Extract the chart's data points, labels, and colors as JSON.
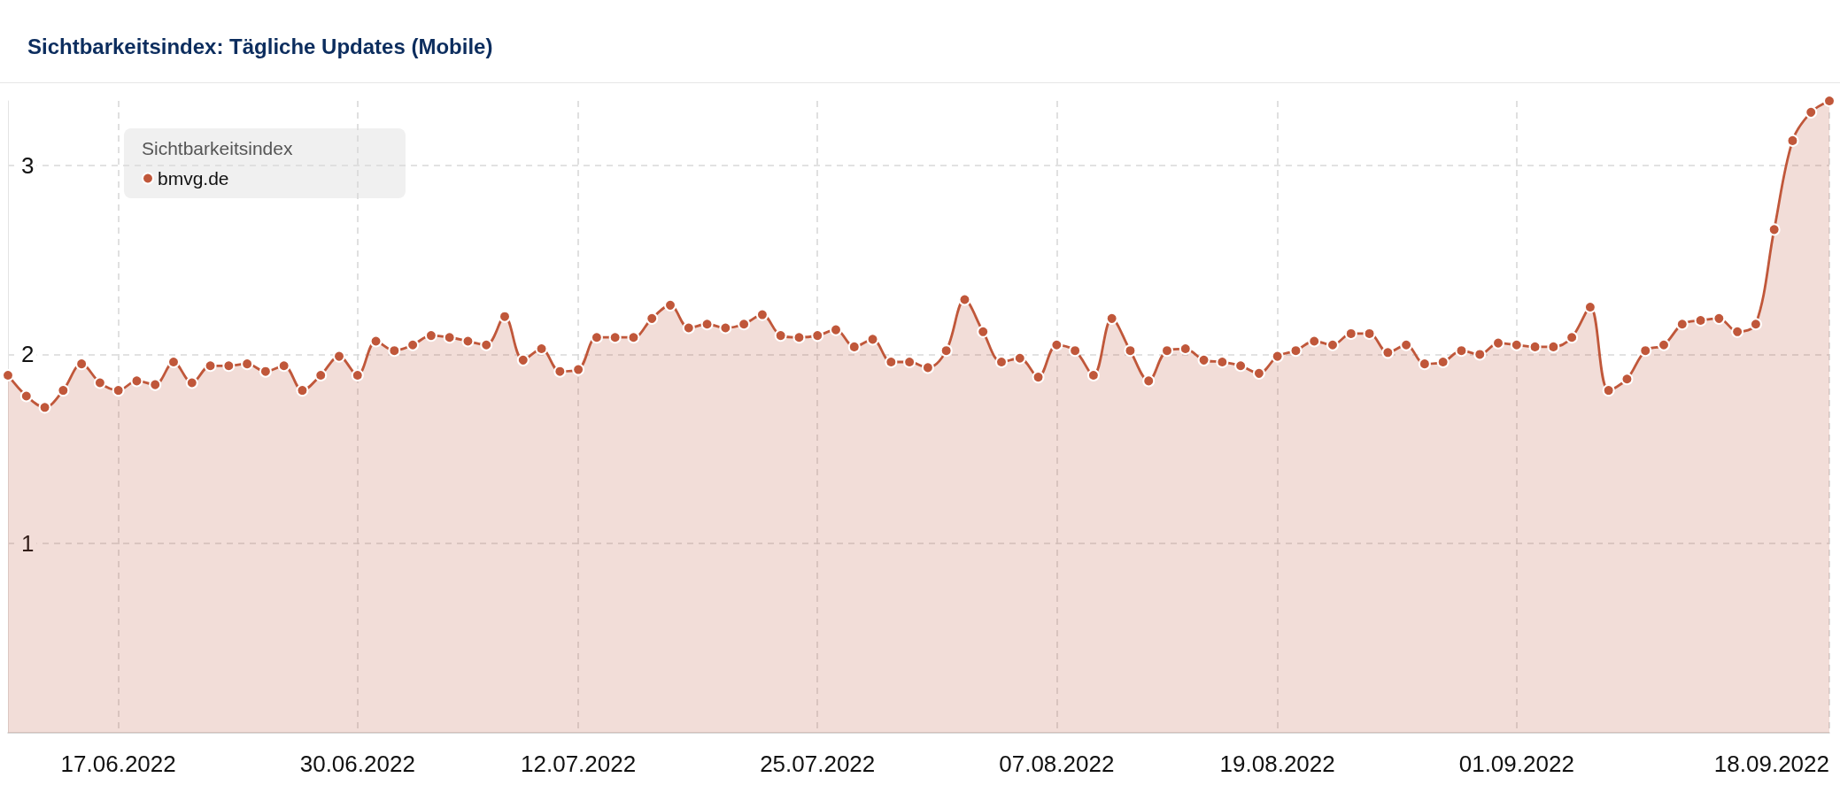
{
  "chart_data": {
    "type": "area",
    "title": "Sichtbarkeitsindex: Tägliche Updates (Mobile)",
    "legend_title": "Sichtbarkeitsindex",
    "legend": "top left",
    "grid": true,
    "marker": "circle",
    "x": [
      "2022-06-11",
      "2022-06-12",
      "2022-06-13",
      "2022-06-14",
      "2022-06-15",
      "2022-06-16",
      "2022-06-17",
      "2022-06-18",
      "2022-06-19",
      "2022-06-20",
      "2022-06-21",
      "2022-06-22",
      "2022-06-23",
      "2022-06-24",
      "2022-06-25",
      "2022-06-26",
      "2022-06-27",
      "2022-06-28",
      "2022-06-29",
      "2022-06-30",
      "2022-07-01",
      "2022-07-02",
      "2022-07-03",
      "2022-07-04",
      "2022-07-05",
      "2022-07-06",
      "2022-07-07",
      "2022-07-08",
      "2022-07-09",
      "2022-07-10",
      "2022-07-11",
      "2022-07-12",
      "2022-07-13",
      "2022-07-14",
      "2022-07-15",
      "2022-07-16",
      "2022-07-17",
      "2022-07-18",
      "2022-07-19",
      "2022-07-20",
      "2022-07-21",
      "2022-07-22",
      "2022-07-23",
      "2022-07-24",
      "2022-07-25",
      "2022-07-26",
      "2022-07-27",
      "2022-07-28",
      "2022-07-29",
      "2022-07-30",
      "2022-07-31",
      "2022-08-01",
      "2022-08-02",
      "2022-08-03",
      "2022-08-04",
      "2022-08-05",
      "2022-08-06",
      "2022-08-07",
      "2022-08-08",
      "2022-08-09",
      "2022-08-10",
      "2022-08-11",
      "2022-08-12",
      "2022-08-13",
      "2022-08-14",
      "2022-08-15",
      "2022-08-16",
      "2022-08-17",
      "2022-08-18",
      "2022-08-19",
      "2022-08-20",
      "2022-08-21",
      "2022-08-22",
      "2022-08-23",
      "2022-08-24",
      "2022-08-25",
      "2022-08-26",
      "2022-08-27",
      "2022-08-28",
      "2022-08-29",
      "2022-08-30",
      "2022-08-31",
      "2022-09-01",
      "2022-09-02",
      "2022-09-03",
      "2022-09-04",
      "2022-09-05",
      "2022-09-06",
      "2022-09-07",
      "2022-09-08",
      "2022-09-09",
      "2022-09-10",
      "2022-09-11",
      "2022-09-12",
      "2022-09-13",
      "2022-09-14",
      "2022-09-15",
      "2022-09-16",
      "2022-09-17",
      "2022-09-18"
    ],
    "series": [
      {
        "name": "bmvg.de",
        "color": "#c0573a",
        "values": [
          1.89,
          1.78,
          1.72,
          1.81,
          1.95,
          1.85,
          1.81,
          1.86,
          1.84,
          1.96,
          1.85,
          1.94,
          1.94,
          1.95,
          1.91,
          1.94,
          1.81,
          1.89,
          1.99,
          1.89,
          2.07,
          2.02,
          2.05,
          2.1,
          2.09,
          2.07,
          2.05,
          2.2,
          1.97,
          2.03,
          1.91,
          1.92,
          2.09,
          2.09,
          2.09,
          2.19,
          2.26,
          2.14,
          2.16,
          2.14,
          2.16,
          2.21,
          2.1,
          2.09,
          2.1,
          2.13,
          2.04,
          2.08,
          1.96,
          1.96,
          1.93,
          2.02,
          2.29,
          2.12,
          1.96,
          1.98,
          1.88,
          2.05,
          2.02,
          1.89,
          2.19,
          2.02,
          1.86,
          2.02,
          2.03,
          1.97,
          1.96,
          1.94,
          1.9,
          1.99,
          2.02,
          2.07,
          2.05,
          2.11,
          2.11,
          2.01,
          2.05,
          1.95,
          1.96,
          2.02,
          2.0,
          2.06,
          2.05,
          2.04,
          2.04,
          2.09,
          2.25,
          1.81,
          1.87,
          2.02,
          2.05,
          2.16,
          2.18,
          2.19,
          2.12,
          2.16,
          2.66,
          3.13,
          3.28,
          3.34
        ]
      }
    ],
    "xlim": [
      "2022-06-11",
      "2022-09-18"
    ],
    "xticks": [
      {
        "value": "2022-06-17",
        "label": "17.06.2022"
      },
      {
        "value": "2022-06-30",
        "label": "30.06.2022"
      },
      {
        "value": "2022-07-12",
        "label": "12.07.2022"
      },
      {
        "value": "2022-07-25",
        "label": "25.07.2022"
      },
      {
        "value": "2022-08-07",
        "label": "07.08.2022"
      },
      {
        "value": "2022-08-19",
        "label": "19.08.2022"
      },
      {
        "value": "2022-09-01",
        "label": "01.09.2022"
      },
      {
        "value": "2022-09-18",
        "label": "18.09.2022"
      }
    ],
    "ylim": [
      0,
      3.34
    ],
    "yticks": [
      1,
      2,
      3
    ]
  }
}
